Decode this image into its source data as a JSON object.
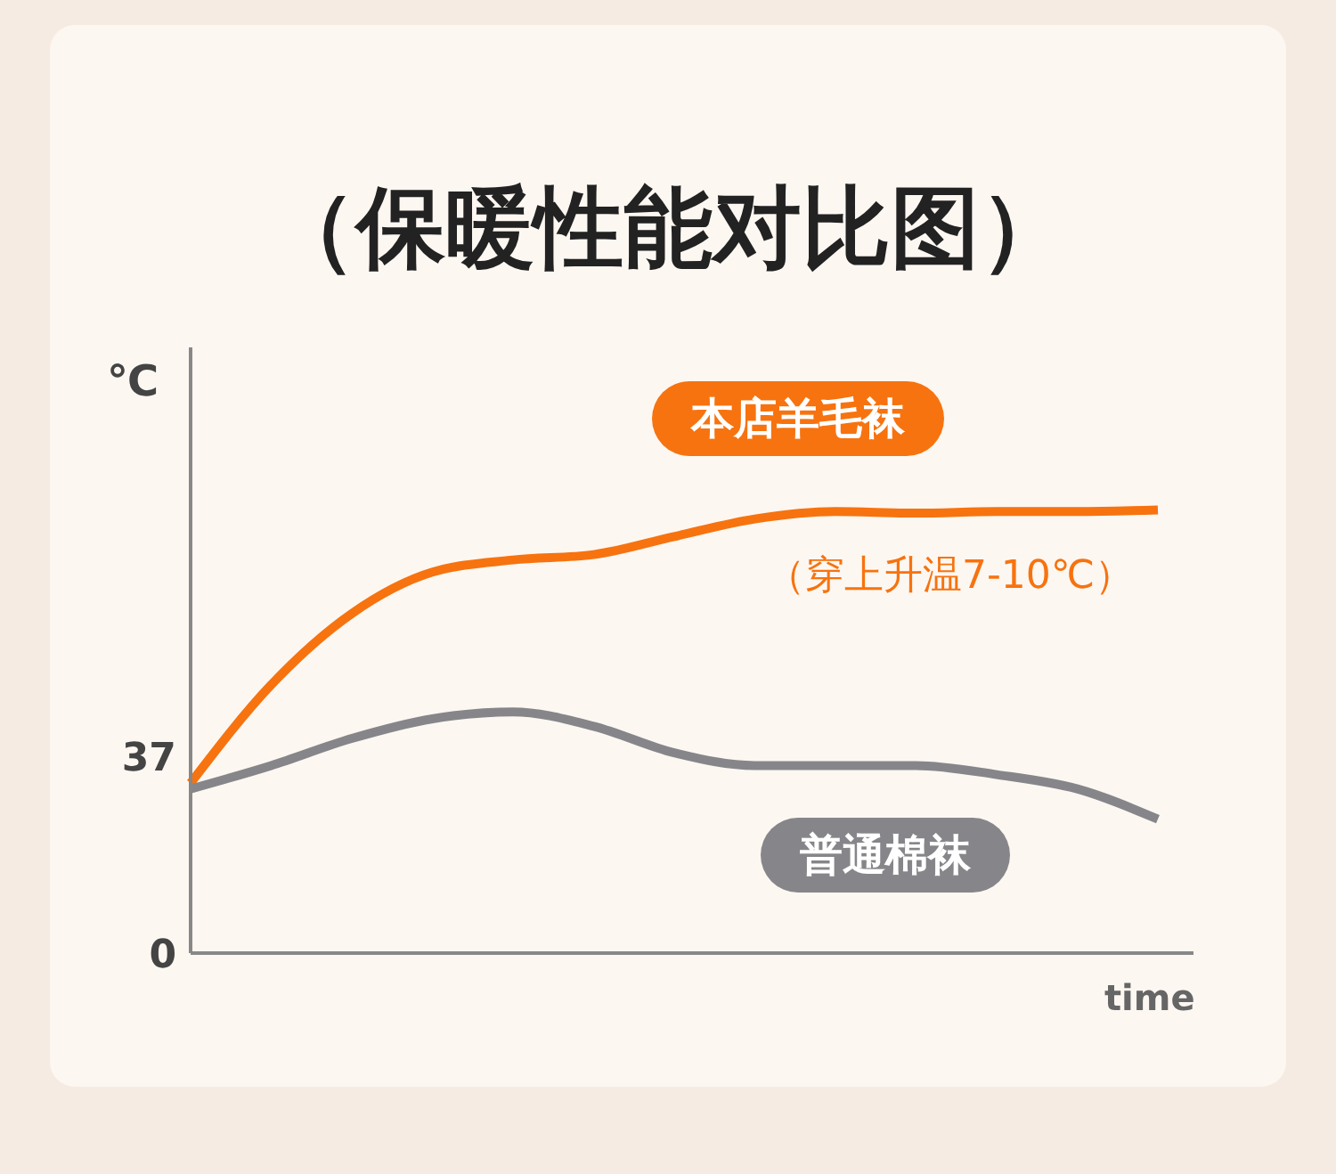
{
  "chart_data": {
    "type": "line",
    "title": "（保暖性能对比图）",
    "xlabel": "time",
    "ylabel": "℃",
    "categories": [
      null,
      null,
      null,
      null,
      null,
      null,
      null,
      null,
      null,
      null,
      null,
      null,
      null
    ],
    "series": [
      {
        "name": "本店羊毛袜",
        "color": "#f7730f",
        "values": [
          32,
          50.5,
          63.9,
          71.7,
          74,
          75,
          78.4,
          81.7,
          83.1,
          82.8,
          83.1,
          83.1,
          83.4
        ]
      },
      {
        "name": "普通棉袜",
        "color": "#86868a",
        "values": [
          30.9,
          35.3,
          40.4,
          44.1,
          45.4,
          42.7,
          37.7,
          35.3,
          35.3,
          35.3,
          33.6,
          30.9,
          25.2
        ]
      }
    ],
    "ylim": [
      0,
      114
    ],
    "yticks": [
      0,
      37
    ],
    "annotations": [
      "（穿上升温7-10℃）"
    ]
  }
}
